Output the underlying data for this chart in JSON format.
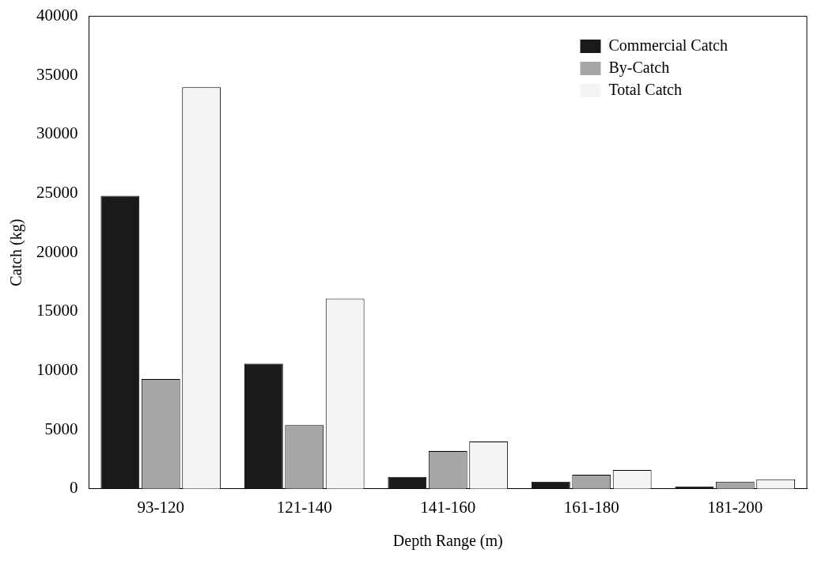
{
  "chart_data": {
    "type": "bar",
    "xlabel": "Depth Range (m)",
    "ylabel": "Catch (kg)",
    "categories": [
      "93-120",
      "121-140",
      "141-160",
      "161-180",
      "181-200"
    ],
    "series": [
      {
        "name": "Commercial Catch",
        "color": "#1a1a1a",
        "values": [
          24800,
          10600,
          1000,
          600,
          200
        ]
      },
      {
        "name": "By-Catch",
        "color": "#a6a6a6",
        "values": [
          9300,
          5400,
          3200,
          1200,
          600
        ]
      },
      {
        "name": "Total Catch",
        "color": "#f4f4f4",
        "values": [
          34000,
          16100,
          4000,
          1600,
          800
        ]
      }
    ],
    "ylim": [
      0,
      40000
    ],
    "yticks": [
      0,
      5000,
      10000,
      15000,
      20000,
      25000,
      30000,
      35000,
      40000
    ],
    "grid": false,
    "legend": "top right"
  }
}
